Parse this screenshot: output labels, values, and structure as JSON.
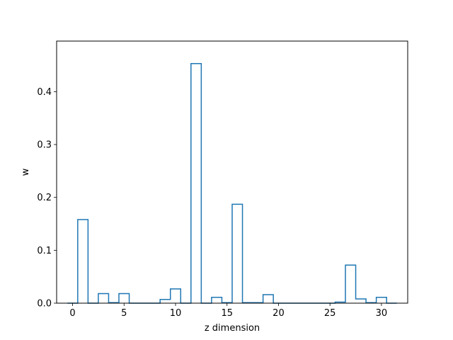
{
  "chart_data": {
    "type": "bar",
    "style": "step-histogram",
    "title": "",
    "xlabel": "z dimension",
    "ylabel": "w",
    "x": [
      0,
      1,
      2,
      3,
      4,
      5,
      6,
      7,
      8,
      9,
      10,
      11,
      12,
      13,
      14,
      15,
      16,
      17,
      18,
      19,
      20,
      21,
      22,
      23,
      24,
      25,
      26,
      27,
      28,
      29,
      30,
      31
    ],
    "values": [
      0.0,
      0.158,
      0.0,
      0.018,
      0.001,
      0.018,
      0.0,
      0.0,
      0.0,
      0.007,
      0.027,
      0.0,
      0.453,
      0.0,
      0.011,
      0.001,
      0.187,
      0.001,
      0.001,
      0.016,
      0.0,
      0.0,
      0.0,
      0.0,
      0.0,
      0.0,
      0.002,
      0.072,
      0.008,
      0.001,
      0.011,
      0.0
    ],
    "xlim": [
      -1.55,
      32.55
    ],
    "ylim": [
      0,
      0.4956
    ],
    "xticks": [
      0,
      5,
      10,
      15,
      20,
      25,
      30
    ],
    "xtick_labels": [
      "0",
      "5",
      "10",
      "15",
      "20",
      "25",
      "30"
    ],
    "yticks": [
      0.0,
      0.1,
      0.2,
      0.3,
      0.4
    ],
    "ytick_labels": [
      "0.0",
      "0.1",
      "0.2",
      "0.3",
      "0.4"
    ],
    "grid": false,
    "legend": "none",
    "line_color": "#1f77b4"
  }
}
